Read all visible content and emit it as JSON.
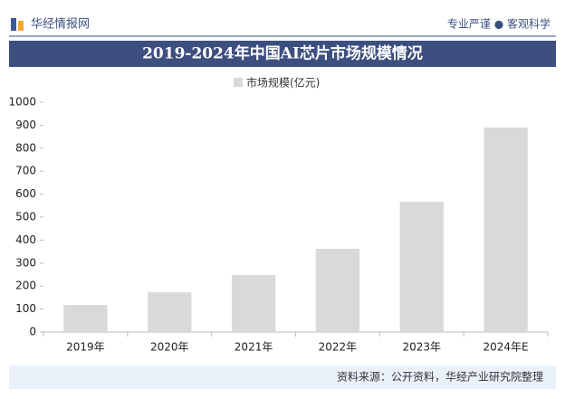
{
  "header": {
    "brand": "华经情报网",
    "slogan": "专业严谨 ● 客观科学"
  },
  "chart_data": {
    "type": "bar",
    "title": "2019-2024年中国AI芯片市场规模情况",
    "categories": [
      "2019年",
      "2020年",
      "2021年",
      "2022年",
      "2023年",
      "2024年E"
    ],
    "series": [
      {
        "name": "市场规模(亿元)",
        "color": "#d9d9d9",
        "values": [
          118,
          173,
          248,
          362,
          567,
          890
        ]
      }
    ],
    "ylim": [
      0,
      1000
    ],
    "yticks": [
      0,
      100,
      200,
      300,
      400,
      500,
      600,
      700,
      800,
      900,
      1000
    ],
    "grid": false
  },
  "footer": {
    "source": "资料来源：公开资料，华经产业研究院整理"
  }
}
